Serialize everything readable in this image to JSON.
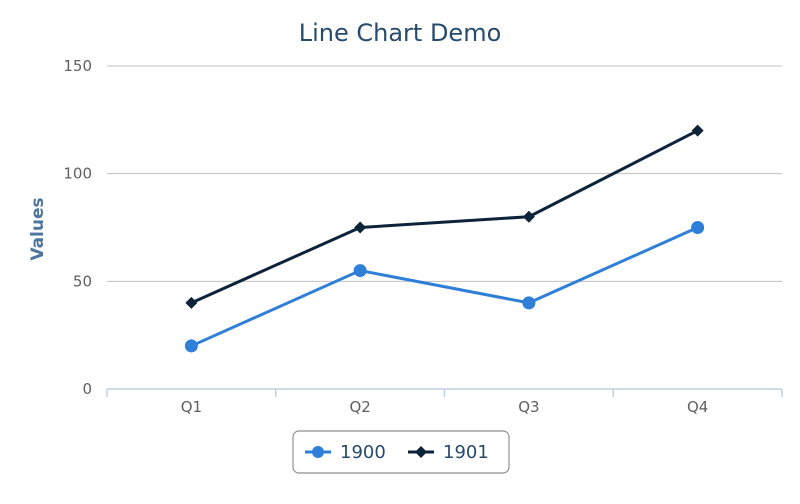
{
  "chart_data": {
    "type": "line",
    "title": "Line Chart Demo",
    "xlabel": "",
    "ylabel": "Values",
    "categories": [
      "Q1",
      "Q2",
      "Q3",
      "Q4"
    ],
    "ylim": [
      0,
      150
    ],
    "yticks": [
      0,
      50,
      100,
      150
    ],
    "grid": true,
    "legend_position": "bottom-center",
    "series": [
      {
        "name": "1900",
        "values": [
          20,
          55,
          40,
          75
        ],
        "color": "#2f7ed8",
        "marker": "circle"
      },
      {
        "name": "1901",
        "values": [
          40,
          75,
          80,
          120
        ],
        "color": "#0d233a",
        "marker": "diamond"
      }
    ]
  }
}
